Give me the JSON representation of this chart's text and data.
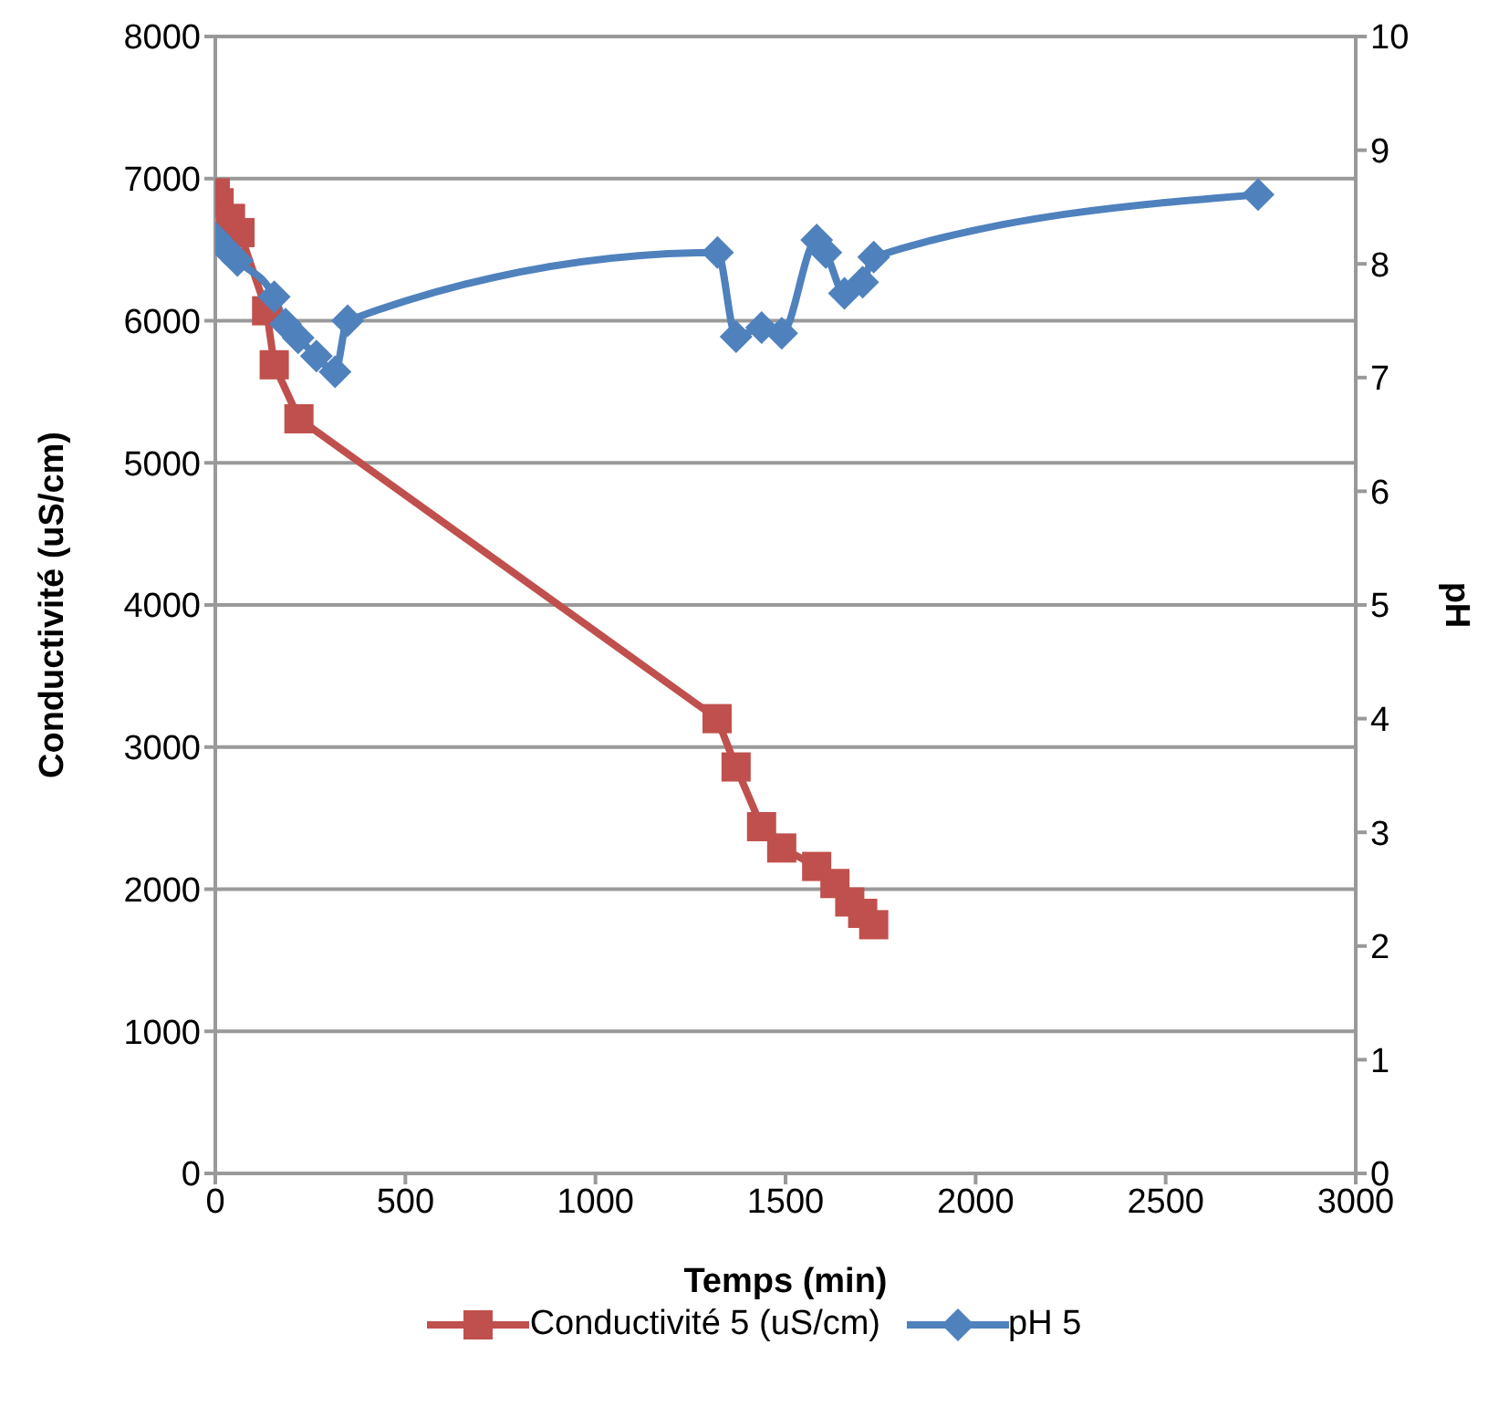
{
  "chart_data": {
    "type": "line",
    "xlabel": "Temps (min)",
    "ylabel": "Conductivité (uS/cm)",
    "y2label": "pH",
    "xlim": [
      0,
      3000
    ],
    "xticks": [
      0,
      500,
      1000,
      1500,
      2000,
      2500,
      3000
    ],
    "ylim": [
      0,
      8000
    ],
    "yticks": [
      0,
      1000,
      2000,
      3000,
      4000,
      5000,
      6000,
      7000,
      8000
    ],
    "y2lim": [
      0,
      10
    ],
    "y2ticks": [
      0,
      1,
      2,
      3,
      4,
      5,
      6,
      7,
      8,
      9,
      10
    ],
    "grid": "y",
    "legend": "bottom",
    "line_style": "solid",
    "series": [
      {
        "name": "Conductivité 5 (uS/cm)",
        "color": "#c0504d",
        "marker": "square",
        "x": [
          0,
          10,
          40,
          65,
          135,
          155,
          220,
          1320,
          1370,
          1437,
          1490,
          1582,
          1630,
          1669,
          1703,
          1732
        ],
        "values": [
          6900,
          6830,
          6720,
          6620,
          6070,
          5690,
          5310,
          3200,
          2860,
          2440,
          2290,
          2160,
          2040,
          1910,
          1830,
          1750
        ]
      },
      {
        "name": "pH 5",
        "color": "#4f81bd",
        "marker": "diamond",
        "axis": "y2",
        "x": [
          0,
          25,
          58,
          155,
          185,
          218,
          266,
          315,
          348,
          1321,
          1370,
          1437,
          1490,
          1582,
          1606,
          1655,
          1703,
          1732,
          2743
        ],
        "values": [
          8.23,
          8.14,
          8.03,
          7.71,
          7.47,
          7.35,
          7.19,
          7.05,
          7.5,
          8.1,
          7.36,
          7.44,
          7.39,
          8.21,
          8.1,
          7.74,
          7.84,
          8.06,
          8.61
        ]
      }
    ]
  }
}
